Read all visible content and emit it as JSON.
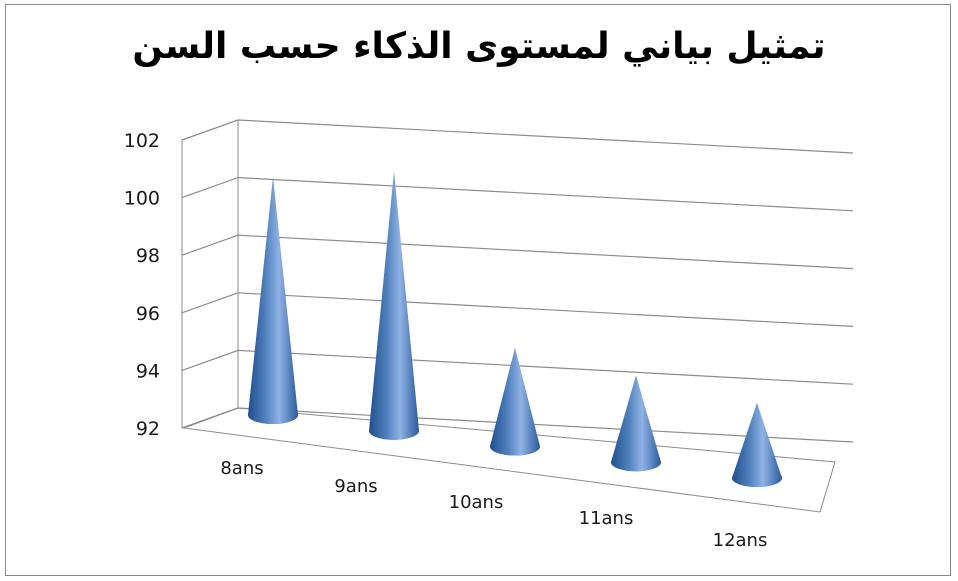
{
  "chart_data": {
    "type": "bar",
    "subtype": "3d-cone",
    "title": "تمثيل بياني لمستوى الذكاء حسب السن",
    "categories": [
      "8ans",
      "9ans",
      "10ans",
      "11ans",
      "12ans"
    ],
    "values": [
      100.0,
      100.8,
      95.2,
      94.8,
      94.4
    ],
    "ylim": [
      92,
      102
    ],
    "yticks": [
      92,
      94,
      96,
      98,
      100,
      102
    ],
    "grid": true,
    "legend": "none",
    "colors": {
      "cone_light": "#8fb2e6",
      "cone_mid": "#4f81bd",
      "cone_dark": "#1f4e8c"
    }
  }
}
